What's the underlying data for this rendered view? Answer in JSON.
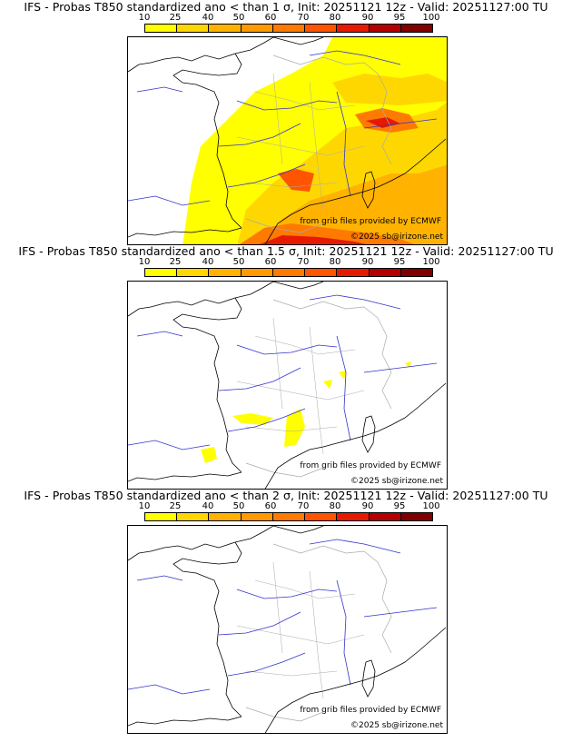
{
  "panels": [
    {
      "title": "IFS - Probas T850  standardized ano < than 1 σ, Init: 20251121 12z - Valid: 20251127:00 TU",
      "coverage": "high"
    },
    {
      "title": "IFS - Probas T850  standardized ano < than 1.5 σ, Init: 20251121 12z - Valid: 20251127:00 TU",
      "coverage": "low"
    },
    {
      "title": "IFS - Probas T850  standardized ano < than 2 σ, Init: 20251121 12z - Valid: 20251127:00 TU",
      "coverage": "none"
    }
  ],
  "colorbar": {
    "ticks": [
      "10",
      "25",
      "40",
      "50",
      "60",
      "70",
      "80",
      "90",
      "95",
      "100"
    ],
    "colors": [
      "#ffff00",
      "#ffd700",
      "#ffb300",
      "#ff9a00",
      "#ff7a00",
      "#ff5500",
      "#e61a00",
      "#b30000",
      "#800000"
    ]
  },
  "credits": {
    "source": "from grib files provided by ECMWF",
    "copyright": "©2025 sb@irizone.net"
  },
  "map_colors": {
    "rivers": "#3333cc",
    "borders": "#aaaaaa",
    "coast": "#000000"
  }
}
